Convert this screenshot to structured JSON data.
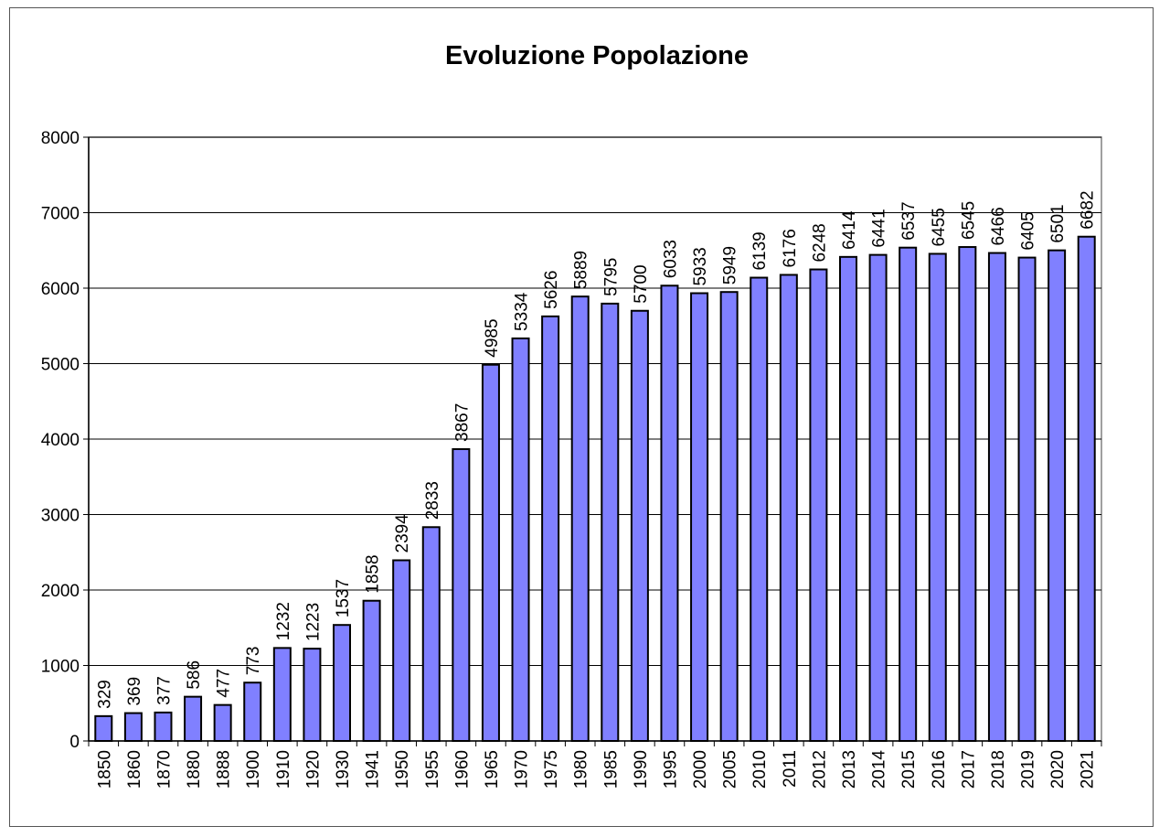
{
  "chart_data": {
    "type": "bar",
    "title": "Evoluzione Popolazione",
    "xlabel": "",
    "ylabel": "",
    "ylim": [
      0,
      8000
    ],
    "yticks": [
      0,
      1000,
      2000,
      3000,
      4000,
      5000,
      6000,
      7000,
      8000
    ],
    "grid": true,
    "legend": "none",
    "bar_color": "#8080FF",
    "categories": [
      "1850",
      "1860",
      "1870",
      "1880",
      "1888",
      "1900",
      "1910",
      "1920",
      "1930",
      "1941",
      "1950",
      "1955",
      "1960",
      "1965",
      "1970",
      "1975",
      "1980",
      "1985",
      "1990",
      "1995",
      "2000",
      "2005",
      "2010",
      "2011",
      "2012",
      "2013",
      "2014",
      "2015",
      "2016",
      "2017",
      "2018",
      "2019",
      "2020",
      "2021"
    ],
    "values": [
      329,
      369,
      377,
      586,
      477,
      773,
      1232,
      1223,
      1537,
      1858,
      2394,
      2833,
      3867,
      4985,
      5334,
      5626,
      5889,
      5795,
      5700,
      6033,
      5933,
      5949,
      6139,
      6176,
      6248,
      6414,
      6441,
      6537,
      6455,
      6545,
      6466,
      6405,
      6501,
      6682
    ]
  }
}
